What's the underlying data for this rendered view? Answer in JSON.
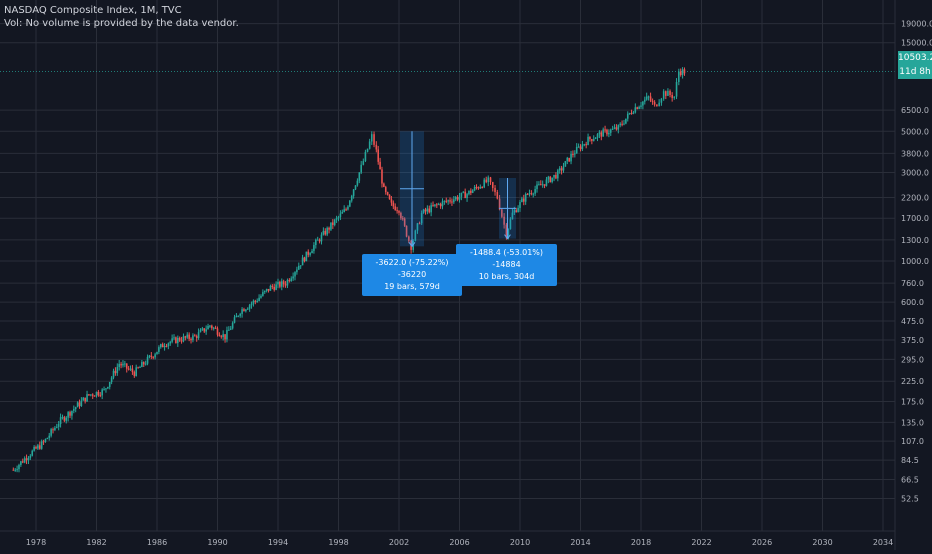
{
  "legend": {
    "title": "NASDAQ Composite Index, 1M, TVC",
    "volume_note": "Vol: No volume is provided by the data vendor."
  },
  "price_axis": {
    "ticks": [
      "19000.0",
      "15000.0",
      "10503.2",
      "6500.0",
      "5000.0",
      "3800.0",
      "3000.0",
      "2200.0",
      "1700.0",
      "1300.0",
      "1000.0",
      "760.0",
      "600.0",
      "475.0",
      "375.0",
      "295.0",
      "225.0",
      "175.0",
      "135.0",
      "107.0",
      "84.5",
      "66.5",
      "52.5"
    ],
    "scale": "log"
  },
  "time_axis": {
    "ticks": [
      "1978",
      "1982",
      "1986",
      "1990",
      "1994",
      "1998",
      "2002",
      "2006",
      "2010",
      "2014",
      "2018",
      "2022",
      "2026",
      "2030",
      "2034"
    ]
  },
  "last_price": {
    "value": "10503.2",
    "countdown": "11d 8h"
  },
  "measurements": [
    {
      "line1": "-3622.0 (-75.22%) -36220",
      "line2": "19 bars, 579d"
    },
    {
      "line1": "-1488.4 (-53.01%) -14884",
      "line2": "10 bars, 304d"
    }
  ],
  "colors": {
    "background": "#131722",
    "grid": "#2a2e39",
    "up": "#26a69a",
    "down": "#ef5350",
    "measure": "#1e88e5",
    "last_price_tag": "#26a69a"
  },
  "chart_data": {
    "type": "candlestick",
    "title": "NASDAQ Composite Index, 1M, TVC",
    "y_scale": "log",
    "series": [
      {
        "name": "NASDAQ Composite Index",
        "x": [
          1976.5,
          1977.5,
          1978.5,
          1979.5,
          1980.5,
          1981.5,
          1982.5,
          1983.5,
          1984.5,
          1985.5,
          1986.5,
          1987.5,
          1988.5,
          1989.5,
          1990.5,
          1991.5,
          1992.5,
          1993.5,
          1994.5,
          1995.5,
          1996.5,
          1997.5,
          1998.5,
          1999.5,
          2000.2,
          2000.5,
          2001.0,
          2001.5,
          2002.0,
          2002.5,
          2002.8,
          2003.5,
          2004.5,
          2005.5,
          2006.5,
          2007.5,
          2007.9,
          2008.5,
          2009.1,
          2009.5,
          2010.5,
          2011.5,
          2012.5,
          2013.5,
          2014.5,
          2015.5,
          2016.5,
          2017.5,
          2018.5,
          2018.9,
          2019.5,
          2020.2,
          2020.5,
          2021.0
        ],
        "close": [
          75,
          90,
          105,
          135,
          160,
          190,
          200,
          280,
          250,
          300,
          360,
          380,
          390,
          450,
          390,
          540,
          610,
          720,
          760,
          980,
          1250,
          1550,
          1900,
          3200,
          4700,
          3900,
          2400,
          2000,
          1900,
          1400,
          1200,
          1800,
          2000,
          2150,
          2300,
          2600,
          2700,
          2200,
          1400,
          1800,
          2300,
          2600,
          2950,
          3800,
          4500,
          4900,
          5200,
          6600,
          7600,
          6800,
          8100,
          7700,
          10500,
          10503
        ]
      }
    ]
  }
}
